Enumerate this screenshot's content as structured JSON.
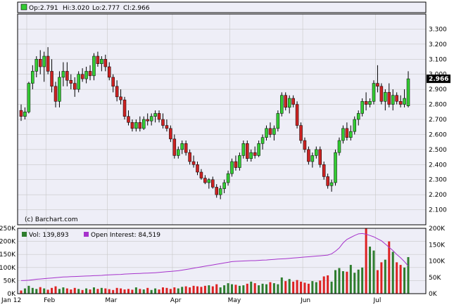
{
  "chart_data": [
    {
      "type": "candlestick",
      "legend": {
        "open": "Op:2.791",
        "high": "Hi:3.020",
        "low": "Lo:2.777",
        "close": "Cl:2.966"
      },
      "last_value_label": "2.966",
      "credit": "(c) Barchart.com",
      "ylim": [
        2.0,
        3.4
      ],
      "y_ticks": [
        "3.300",
        "3.200",
        "3.100",
        "3.000",
        "2.900",
        "2.800",
        "2.700",
        "2.600",
        "2.500",
        "2.400",
        "2.300",
        "2.200",
        "2.100"
      ],
      "x_tick_labels": [
        "Jan 12",
        "Feb",
        "Mar",
        "Apr",
        "May",
        "Jun",
        "Jul"
      ],
      "colors": {
        "up": "#33cc33",
        "down": "#cc2222",
        "grid": "#c8c8c8",
        "border": "#000000",
        "frame": "#eeeef7",
        "last_label_bg": "#000000"
      },
      "ohlc": [
        [
          2.76,
          2.8,
          2.69,
          2.72
        ],
        [
          2.72,
          2.78,
          2.7,
          2.75
        ],
        [
          2.75,
          2.95,
          2.74,
          2.94
        ],
        [
          2.94,
          3.06,
          2.9,
          3.02
        ],
        [
          3.02,
          3.12,
          2.98,
          3.1
        ],
        [
          3.1,
          3.16,
          3.0,
          3.05
        ],
        [
          3.05,
          3.15,
          2.95,
          3.12
        ],
        [
          3.12,
          3.18,
          3.0,
          3.02
        ],
        [
          3.02,
          3.1,
          2.88,
          2.92
        ],
        [
          2.92,
          2.95,
          2.78,
          2.82
        ],
        [
          2.82,
          3.02,
          2.78,
          2.98
        ],
        [
          2.98,
          3.08,
          2.92,
          3.02
        ],
        [
          3.02,
          3.08,
          2.92,
          2.96
        ],
        [
          2.96,
          3.0,
          2.9,
          2.94
        ],
        [
          2.94,
          2.98,
          2.85,
          2.9
        ],
        [
          2.9,
          3.02,
          2.88,
          3.0
        ],
        [
          3.0,
          3.04,
          2.95,
          2.97
        ],
        [
          2.97,
          3.05,
          2.94,
          3.02
        ],
        [
          3.02,
          3.06,
          2.96,
          2.99
        ],
        [
          2.99,
          3.14,
          2.96,
          3.12
        ],
        [
          3.12,
          3.15,
          3.05,
          3.07
        ],
        [
          3.07,
          3.12,
          3.02,
          3.1
        ],
        [
          3.1,
          3.13,
          3.02,
          3.05
        ],
        [
          3.05,
          3.08,
          2.96,
          2.98
        ],
        [
          2.98,
          3.0,
          2.88,
          2.92
        ],
        [
          2.92,
          2.96,
          2.82,
          2.85
        ],
        [
          2.85,
          2.9,
          2.8,
          2.83
        ],
        [
          2.83,
          2.85,
          2.7,
          2.72
        ],
        [
          2.72,
          2.76,
          2.66,
          2.68
        ],
        [
          2.68,
          2.7,
          2.62,
          2.64
        ],
        [
          2.64,
          2.7,
          2.62,
          2.68
        ],
        [
          2.68,
          2.72,
          2.62,
          2.64
        ],
        [
          2.64,
          2.72,
          2.63,
          2.7
        ],
        [
          2.7,
          2.74,
          2.66,
          2.69
        ],
        [
          2.69,
          2.74,
          2.66,
          2.72
        ],
        [
          2.72,
          2.76,
          2.68,
          2.74
        ],
        [
          2.74,
          2.76,
          2.68,
          2.7
        ],
        [
          2.7,
          2.74,
          2.64,
          2.66
        ],
        [
          2.66,
          2.7,
          2.62,
          2.64
        ],
        [
          2.64,
          2.66,
          2.55,
          2.57
        ],
        [
          2.57,
          2.6,
          2.44,
          2.46
        ],
        [
          2.46,
          2.52,
          2.44,
          2.5
        ],
        [
          2.5,
          2.56,
          2.47,
          2.54
        ],
        [
          2.54,
          2.56,
          2.46,
          2.48
        ],
        [
          2.48,
          2.5,
          2.4,
          2.42
        ],
        [
          2.42,
          2.46,
          2.38,
          2.4
        ],
        [
          2.4,
          2.42,
          2.33,
          2.35
        ],
        [
          2.35,
          2.37,
          2.3,
          2.31
        ],
        [
          2.31,
          2.33,
          2.27,
          2.28
        ],
        [
          2.28,
          2.31,
          2.24,
          2.3
        ],
        [
          2.3,
          2.32,
          2.24,
          2.25
        ],
        [
          2.25,
          2.27,
          2.18,
          2.2
        ],
        [
          2.2,
          2.26,
          2.17,
          2.24
        ],
        [
          2.24,
          2.3,
          2.21,
          2.28
        ],
        [
          2.28,
          2.36,
          2.26,
          2.34
        ],
        [
          2.34,
          2.44,
          2.32,
          2.42
        ],
        [
          2.42,
          2.46,
          2.36,
          2.38
        ],
        [
          2.38,
          2.48,
          2.36,
          2.46
        ],
        [
          2.46,
          2.56,
          2.44,
          2.54
        ],
        [
          2.54,
          2.56,
          2.42,
          2.44
        ],
        [
          2.44,
          2.5,
          2.42,
          2.48
        ],
        [
          2.48,
          2.52,
          2.44,
          2.46
        ],
        [
          2.46,
          2.56,
          2.45,
          2.54
        ],
        [
          2.54,
          2.6,
          2.5,
          2.58
        ],
        [
          2.58,
          2.66,
          2.56,
          2.64
        ],
        [
          2.64,
          2.68,
          2.58,
          2.6
        ],
        [
          2.6,
          2.66,
          2.56,
          2.64
        ],
        [
          2.64,
          2.76,
          2.62,
          2.74
        ],
        [
          2.74,
          2.88,
          2.72,
          2.86
        ],
        [
          2.86,
          2.88,
          2.76,
          2.78
        ],
        [
          2.78,
          2.86,
          2.74,
          2.84
        ],
        [
          2.84,
          2.86,
          2.78,
          2.8
        ],
        [
          2.8,
          2.82,
          2.64,
          2.66
        ],
        [
          2.66,
          2.68,
          2.54,
          2.56
        ],
        [
          2.56,
          2.58,
          2.48,
          2.5
        ],
        [
          2.5,
          2.52,
          2.4,
          2.42
        ],
        [
          2.42,
          2.48,
          2.38,
          2.46
        ],
        [
          2.46,
          2.52,
          2.44,
          2.5
        ],
        [
          2.5,
          2.52,
          2.38,
          2.4
        ],
        [
          2.4,
          2.42,
          2.3,
          2.32
        ],
        [
          2.32,
          2.34,
          2.24,
          2.26
        ],
        [
          2.26,
          2.3,
          2.22,
          2.28
        ],
        [
          2.28,
          2.5,
          2.26,
          2.48
        ],
        [
          2.48,
          2.58,
          2.46,
          2.56
        ],
        [
          2.56,
          2.66,
          2.54,
          2.64
        ],
        [
          2.64,
          2.68,
          2.56,
          2.58
        ],
        [
          2.58,
          2.66,
          2.56,
          2.62
        ],
        [
          2.62,
          2.72,
          2.6,
          2.7
        ],
        [
          2.7,
          2.76,
          2.66,
          2.74
        ],
        [
          2.74,
          2.84,
          2.72,
          2.82
        ],
        [
          2.82,
          2.88,
          2.76,
          2.8
        ],
        [
          2.8,
          2.84,
          2.78,
          2.82
        ],
        [
          2.82,
          2.96,
          2.8,
          2.94
        ],
        [
          2.94,
          3.06,
          2.88,
          2.92
        ],
        [
          2.92,
          2.94,
          2.8,
          2.82
        ],
        [
          2.82,
          2.9,
          2.76,
          2.88
        ],
        [
          2.88,
          2.94,
          2.78,
          2.8
        ],
        [
          2.8,
          2.9,
          2.76,
          2.86
        ],
        [
          2.86,
          2.88,
          2.8,
          2.82
        ],
        [
          2.82,
          2.86,
          2.78,
          2.8
        ],
        [
          2.8,
          2.9,
          2.78,
          2.84
        ],
        [
          2.79,
          3.02,
          2.78,
          2.97
        ]
      ]
    },
    {
      "type": "bar",
      "legend": {
        "volume": "Vol: 139,893",
        "open_interest": "Open Interest: 84,519"
      },
      "left_ticks": [
        "250K",
        "200K",
        "150K",
        "100K",
        "50K",
        "0K"
      ],
      "right_ticks": [
        "200K",
        "150K",
        "100K",
        "50K",
        "0K"
      ],
      "x_tick_labels": [
        "Jan 12",
        "Feb",
        "Mar",
        "Apr",
        "May",
        "Jun",
        "Jul"
      ],
      "volume_ylim": [
        0,
        250000
      ],
      "open_interest_ylim": [
        0,
        200000
      ],
      "colors": {
        "volume_up": "#2e7d2e",
        "volume_down": "#dd2222",
        "open_interest": "#a633cc",
        "legend_volume": "#2e7d2e",
        "legend_open_interest": "#a633cc"
      },
      "volume": [
        12000,
        20000,
        30000,
        22000,
        18000,
        25000,
        20000,
        15000,
        22000,
        28000,
        18000,
        24000,
        20000,
        16000,
        22000,
        18000,
        14000,
        20000,
        16000,
        24000,
        18000,
        22000,
        20000,
        17000,
        14000,
        22000,
        20000,
        16000,
        18000,
        15000,
        24000,
        18000,
        16000,
        22000,
        14000,
        20000,
        16000,
        24000,
        22000,
        18000,
        24000,
        20000,
        26000,
        28000,
        24000,
        30000,
        28000,
        26000,
        30000,
        32000,
        28000,
        36000,
        24000,
        32000,
        40000,
        36000,
        34000,
        30000,
        32000,
        38000,
        46000,
        40000,
        32000,
        38000,
        36000,
        44000,
        40000,
        36000,
        62000,
        48000,
        56000,
        46000,
        52000,
        46000,
        42000,
        38000,
        48000,
        44000,
        50000,
        66000,
        70000,
        46000,
        90000,
        98000,
        86000,
        84000,
        110000,
        80000,
        92000,
        100000,
        250000,
        180000,
        165000,
        90000,
        120000,
        130000,
        200000,
        160000,
        120000,
        110000,
        100000,
        139893
      ],
      "volume_direction": [
        "d",
        "u",
        "u",
        "u",
        "u",
        "d",
        "u",
        "d",
        "d",
        "d",
        "u",
        "u",
        "d",
        "d",
        "d",
        "u",
        "d",
        "u",
        "d",
        "u",
        "d",
        "u",
        "d",
        "d",
        "d",
        "d",
        "d",
        "d",
        "d",
        "d",
        "u",
        "d",
        "u",
        "d",
        "u",
        "u",
        "d",
        "d",
        "d",
        "d",
        "d",
        "u",
        "u",
        "d",
        "d",
        "d",
        "d",
        "d",
        "d",
        "u",
        "d",
        "d",
        "u",
        "u",
        "u",
        "u",
        "d",
        "u",
        "u",
        "d",
        "u",
        "d",
        "u",
        "u",
        "u",
        "d",
        "u",
        "u",
        "u",
        "d",
        "u",
        "d",
        "d",
        "d",
        "d",
        "d",
        "u",
        "u",
        "d",
        "d",
        "d",
        "u",
        "u",
        "u",
        "u",
        "d",
        "u",
        "u",
        "u",
        "u",
        "d",
        "u",
        "u",
        "d",
        "d",
        "u",
        "d",
        "u",
        "d",
        "d",
        "u",
        "u"
      ],
      "open_interest": [
        40000,
        40500,
        41000,
        42500,
        44000,
        45000,
        46000,
        47000,
        48000,
        49000,
        50000,
        51000,
        51500,
        52000,
        52500,
        53000,
        53500,
        54000,
        54500,
        55000,
        55500,
        56000,
        57000,
        57500,
        58000,
        58500,
        59000,
        60000,
        60500,
        61000,
        61500,
        62000,
        62500,
        63000,
        63500,
        64000,
        65000,
        66000,
        67000,
        68000,
        69000,
        70000,
        72000,
        74000,
        76000,
        78000,
        80000,
        82000,
        84000,
        86000,
        88000,
        90000,
        92000,
        94000,
        96000,
        98000,
        99000,
        99500,
        100000,
        100500,
        101000,
        101000,
        102000,
        102500,
        103000,
        104000,
        105000,
        106000,
        106500,
        107000,
        108000,
        109000,
        110000,
        111000,
        112000,
        113000,
        114000,
        115000,
        116000,
        117000,
        118000,
        122000,
        130000,
        140000,
        155000,
        166000,
        172000,
        178000,
        183000,
        184000,
        182000,
        178000,
        174000,
        168000,
        162000,
        152000,
        142000,
        132000,
        120000,
        110000,
        98000,
        84519
      ]
    }
  ]
}
